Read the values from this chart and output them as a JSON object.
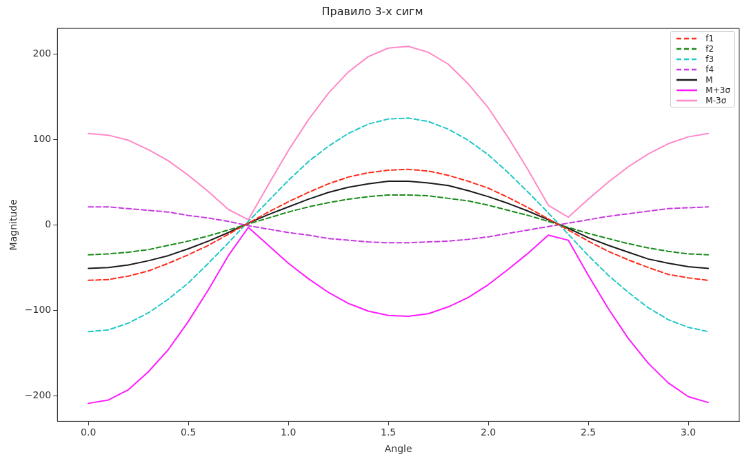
{
  "chart_data": {
    "type": "line",
    "title": "Правило 3-х сигм",
    "xlabel": "Angle",
    "ylabel": "Magnitude",
    "x": [
      0,
      0.1,
      0.2,
      0.3,
      0.4,
      0.5,
      0.6,
      0.7,
      0.8,
      0.9,
      1.0,
      1.1,
      1.2,
      1.3,
      1.4,
      1.5,
      1.6,
      1.7,
      1.8,
      1.9,
      2.0,
      2.1,
      2.2,
      2.3,
      2.4,
      2.5,
      2.6,
      2.7,
      2.8,
      2.9,
      3.0,
      3.1
    ],
    "xlim": [
      -0.155,
      3.255
    ],
    "xticks": [
      {
        "value": 0,
        "label": "0.0"
      },
      0.5,
      {
        "value": 1,
        "label": "1.0"
      },
      1.5,
      {
        "value": 2,
        "label": "2.0"
      },
      2.5,
      {
        "value": 3,
        "label": "3.0"
      }
    ],
    "ylim": [
      -230,
      230
    ],
    "yticks": [
      {
        "value": -200,
        "label": "−200"
      },
      {
        "value": -100,
        "label": "−100"
      },
      0,
      100,
      200
    ],
    "grid": false,
    "legend": "top right",
    "marker": "none",
    "series": [
      {
        "name": "f1",
        "color": "#ff2a1a",
        "line_style": "dashed",
        "values": [
          -65,
          -64,
          -60,
          -54,
          -45,
          -35,
          -24,
          -11,
          2,
          15,
          27,
          38,
          48,
          56,
          61,
          64,
          65,
          63,
          58,
          51,
          43,
          32,
          20,
          7,
          -6,
          -19,
          -31,
          -41,
          -50,
          -58,
          -62,
          -65
        ]
      },
      {
        "name": "f2",
        "color": "#1a8a1a",
        "line_style": "dashed",
        "values": [
          -35,
          -34,
          -32,
          -29,
          -24,
          -19,
          -13,
          -6,
          1,
          8,
          15,
          21,
          26,
          30,
          33,
          35,
          35,
          34,
          31,
          28,
          23,
          17,
          11,
          4,
          -3,
          -10,
          -16,
          -22,
          -27,
          -31,
          -34,
          -35
        ]
      },
      {
        "name": "f3",
        "color": "#22c7c7",
        "line_style": "dashed",
        "values": [
          -125,
          -123,
          -115,
          -103,
          -87,
          -68,
          -45,
          -21,
          4,
          28,
          52,
          74,
          92,
          107,
          118,
          124,
          125,
          121,
          112,
          99,
          82,
          61,
          38,
          14,
          -11,
          -36,
          -59,
          -79,
          -97,
          -111,
          -120,
          -125
        ]
      },
      {
        "name": "f4",
        "color": "#c738e0",
        "line_style": "dashed",
        "values": [
          21,
          21,
          19,
          17,
          15,
          11,
          8,
          4,
          -1,
          -5,
          -9,
          -12,
          -16,
          -18,
          -20,
          -21,
          -21,
          -20,
          -19,
          -17,
          -14,
          -10,
          -6,
          -2,
          2,
          6,
          10,
          13,
          16,
          19,
          20,
          21
        ]
      },
      {
        "name": "M",
        "color": "#1a1a1a",
        "line_style": "solid",
        "values": [
          -51,
          -50,
          -47,
          -42,
          -36,
          -28,
          -19,
          -9,
          2,
          12,
          21,
          30,
          38,
          44,
          48,
          51,
          51,
          49,
          46,
          40,
          33,
          25,
          16,
          6,
          -4,
          -15,
          -24,
          -32,
          -40,
          -45,
          -49,
          -51
        ]
      },
      {
        "name": "M+3σ",
        "color": "#ff1aff",
        "line_style": "solid",
        "values": [
          -209,
          -205,
          -193,
          -172,
          -146,
          -113,
          -76,
          -36,
          -3,
          -24,
          -45,
          -63,
          -79,
          -92,
          -101,
          -106,
          -107,
          -104,
          -96,
          -85,
          -70,
          -52,
          -33,
          -12,
          -18,
          -59,
          -98,
          -133,
          -162,
          -185,
          -201,
          -208
        ]
      },
      {
        "name": "M-3σ",
        "color": "#ff88c8",
        "line_style": "solid",
        "values": [
          107,
          105,
          99,
          88,
          75,
          58,
          39,
          18,
          6,
          47,
          87,
          123,
          154,
          179,
          197,
          207,
          209,
          202,
          188,
          165,
          137,
          102,
          64,
          23,
          9,
          30,
          50,
          68,
          83,
          95,
          103,
          107
        ]
      }
    ]
  }
}
